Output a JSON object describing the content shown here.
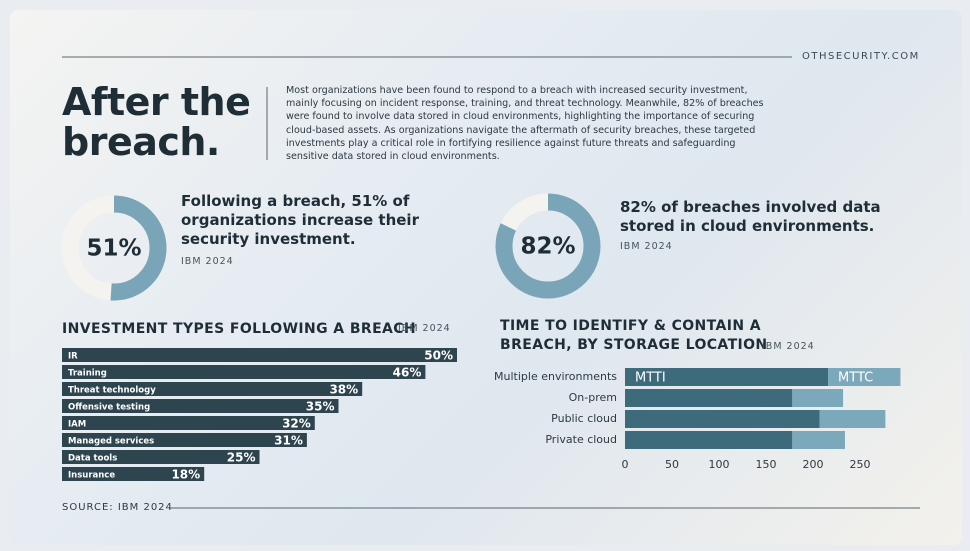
{
  "brand": "OTHSECURITY.COM",
  "title": "After the breach.",
  "intro": "Most organizations have been found to respond to a breach with increased security investment, mainly focusing on incident response, training, and threat technology. Meanwhile, 82% of breaches were found to involve data stored in cloud environments, highlighting the importance of securing cloud-based assets. As organizations navigate the aftermath of security breaches, these targeted investments play a critical role in fortifying resilience against future threats and safeguarding sensitive data stored in cloud environments.",
  "stats": [
    {
      "value": 51,
      "value_label": "51%",
      "text": "Following a breach, 51% of organizations increase their security investment.",
      "source": "IBM 2024",
      "color": "#7aa5b8"
    },
    {
      "value": 82,
      "value_label": "82%",
      "text": "82% of breaches involved data stored in cloud environments.",
      "source": "IBM 2024",
      "color": "#7aa5b8"
    }
  ],
  "chart_data": [
    {
      "type": "bar",
      "orientation": "horizontal",
      "title": "INVESTMENT TYPES FOLLOWING A BREACH",
      "subtitle": "IBM 2024",
      "categories": [
        "IR",
        "Training",
        "Threat technology",
        "Offensive testing",
        "IAM",
        "Managed services",
        "Data tools",
        "Insurance"
      ],
      "values": [
        50,
        46,
        38,
        35,
        32,
        31,
        25,
        18
      ],
      "value_labels": [
        "50%",
        "46%",
        "38%",
        "35%",
        "32%",
        "31%",
        "25%",
        "18%"
      ],
      "color": "#2e4550"
    },
    {
      "type": "bar",
      "orientation": "horizontal",
      "stacked": true,
      "title": "TIME TO IDENTIFY & CONTAIN A BREACH, BY STORAGE LOCATION",
      "subtitle": "IBM 2024",
      "categories": [
        "Multiple environments",
        "On-prem",
        "Public cloud",
        "Private cloud"
      ],
      "series": [
        {
          "name": "MTTI",
          "color": "#3e6b7c",
          "values": [
            216,
            178,
            207,
            178
          ]
        },
        {
          "name": "MTTC",
          "color": "#7ba8ba",
          "values": [
            77,
            54,
            70,
            56
          ]
        }
      ],
      "xlim": [
        0,
        300
      ],
      "xticks": [
        0,
        50,
        100,
        150,
        200,
        250
      ]
    }
  ],
  "source": "SOURCE: IBM 2024"
}
